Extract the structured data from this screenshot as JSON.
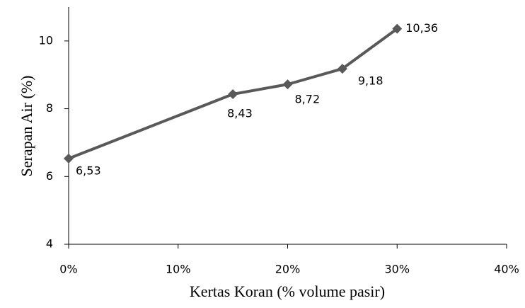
{
  "chart_data": {
    "type": "line",
    "x_label": "Kertas Koran (% volume pasir)",
    "y_label": "Serapan Air (%)",
    "series": [
      {
        "name": "Serapan Air",
        "color": "#595959",
        "x": [
          0,
          15,
          20,
          25,
          30
        ],
        "values": [
          6.53,
          8.43,
          8.72,
          9.18,
          10.36
        ],
        "value_labels": [
          "6,53",
          "8,43",
          "8,72",
          "9,18",
          "10,36"
        ]
      }
    ],
    "xlim": [
      0,
      40
    ],
    "xticks": [
      {
        "value": 0,
        "label": "0%"
      },
      {
        "value": 10,
        "label": "10%"
      },
      {
        "value": 20,
        "label": "20%"
      },
      {
        "value": 30,
        "label": "30%"
      },
      {
        "value": 40,
        "label": "40%"
      }
    ],
    "ylim": [
      4,
      11
    ],
    "yticks": [
      4,
      6,
      8,
      10
    ],
    "grid": false
  }
}
